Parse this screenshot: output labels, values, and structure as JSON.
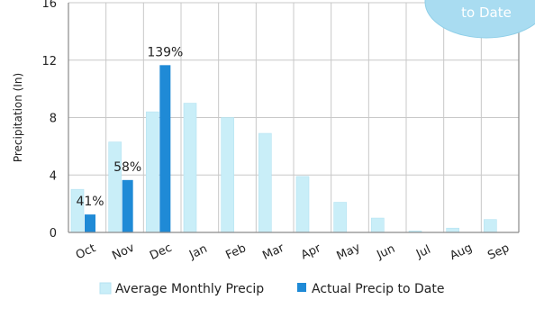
{
  "chart_data": {
    "type": "bar",
    "categories": [
      "Oct",
      "Nov",
      "Dec",
      "Jan",
      "Feb",
      "Mar",
      "Apr",
      "May",
      "Jun",
      "Jul",
      "Aug",
      "Sep"
    ],
    "series": [
      {
        "name": "Average Monthly Precip",
        "color": "#c9eef8",
        "values": [
          3.0,
          6.3,
          8.4,
          9.0,
          8.0,
          6.9,
          3.9,
          2.1,
          1.0,
          0.1,
          0.3,
          0.9
        ]
      },
      {
        "name": "Actual Precip to Date",
        "color": "#1f8ad6",
        "values": [
          1.25,
          3.65,
          11.65,
          null,
          null,
          null,
          null,
          null,
          null,
          null,
          null,
          null
        ]
      }
    ],
    "data_labels": [
      "41%",
      "58%",
      "139%"
    ],
    "ylabel": "Precipitation (In)",
    "ylim": [
      0,
      16
    ],
    "yticks": [
      0,
      4,
      8,
      12,
      16
    ],
    "grid": true,
    "legend_position": "bottom",
    "callout_text": "to Date",
    "callout_color": "#a9dcf1"
  }
}
